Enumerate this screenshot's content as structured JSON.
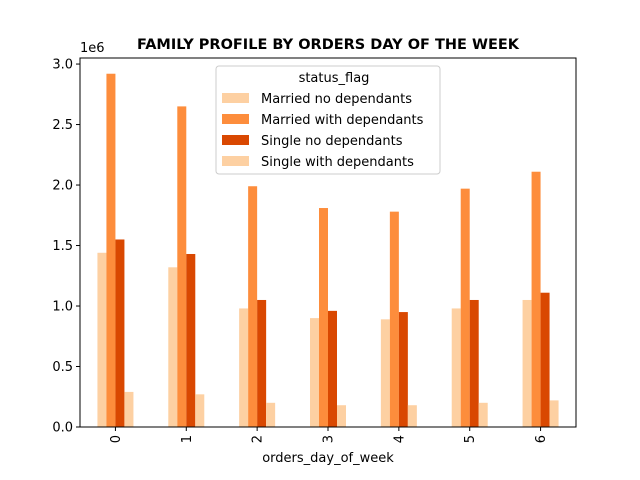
{
  "chart_data": {
    "type": "bar",
    "title": "FAMILY PROFILE BY ORDERS DAY OF THE WEEK",
    "xlabel": "orders_day_of_week",
    "ylabel": "",
    "y_offset_text": "1e6",
    "categories": [
      "0",
      "1",
      "2",
      "3",
      "4",
      "5",
      "6"
    ],
    "ylim": [
      0,
      3.05
    ],
    "yticks": [
      "0.0",
      "0.5",
      "1.0",
      "1.5",
      "2.0",
      "2.5",
      "3.0"
    ],
    "legend": {
      "title": "status_flag",
      "placement": "top-center"
    },
    "series": [
      {
        "name": "Married no dependants",
        "color": "#fdd0a2",
        "values": [
          1.44,
          1.32,
          0.98,
          0.9,
          0.89,
          0.98,
          1.05
        ]
      },
      {
        "name": "Married with dependants",
        "color": "#fd8d3c",
        "values": [
          2.92,
          2.65,
          1.99,
          1.81,
          1.78,
          1.97,
          2.11
        ]
      },
      {
        "name": "Single no dependants",
        "color": "#d94801",
        "values": [
          1.55,
          1.43,
          1.05,
          0.96,
          0.95,
          1.05,
          1.11
        ]
      },
      {
        "name": "Single with dependants",
        "color": "#fdd0a2",
        "values": [
          0.29,
          0.27,
          0.2,
          0.18,
          0.18,
          0.2,
          0.22
        ]
      }
    ]
  }
}
